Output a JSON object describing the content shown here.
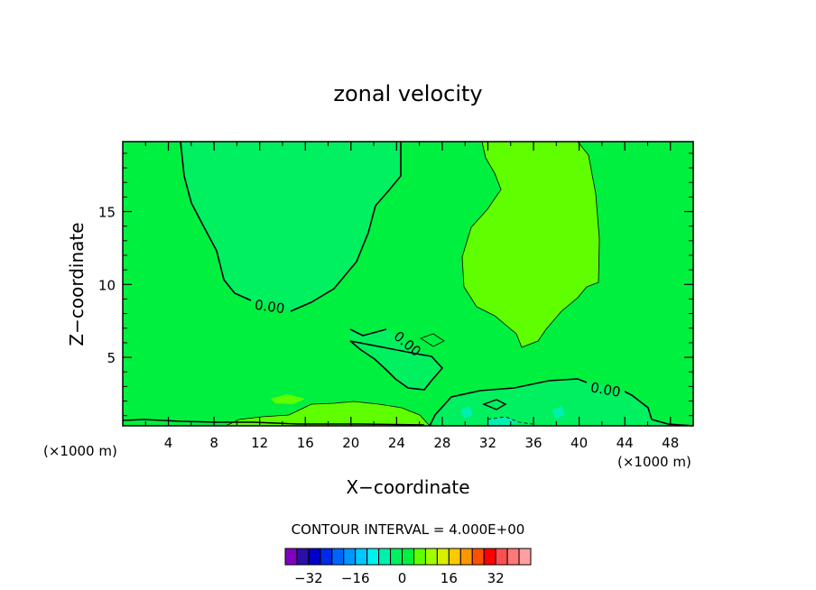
{
  "chart_data": {
    "type": "contour",
    "title": "zonal velocity",
    "xlabel": "X−coordinate",
    "ylabel": "Z−coordinate",
    "x_unit_left": "(×1000 m)",
    "x_unit_right": "(×1000 m)",
    "xlim": [
      0,
      50
    ],
    "ylim": [
      0.3,
      19.8
    ],
    "x_ticks": [
      4,
      8,
      12,
      16,
      20,
      24,
      28,
      32,
      36,
      40,
      44,
      48
    ],
    "y_ticks": [
      5,
      10,
      15
    ],
    "contour_labels": [
      {
        "text": "0.00",
        "x": 13,
        "y": 8.3
      },
      {
        "text": "0.00",
        "x": 24.5,
        "y": 5.6
      },
      {
        "text": "0.00",
        "x": 42,
        "y": 2.3
      }
    ],
    "contour_interval_text": "CONTOUR INTERVAL = 4.000E+00",
    "colorbar": {
      "colors": [
        "#8000c0",
        "#2a10a8",
        "#0000c8",
        "#0028e8",
        "#0064ff",
        "#0096ff",
        "#00c8ff",
        "#00f0f0",
        "#00f0b0",
        "#00f060",
        "#00f040",
        "#60ff00",
        "#a0ff00",
        "#d8f000",
        "#ffc800",
        "#ff9600",
        "#ff5000",
        "#ff0000",
        "#ff5050",
        "#ff7878",
        "#ffa0a0"
      ],
      "labels": [
        {
          "text": "−32",
          "value": -32
        },
        {
          "text": "−16",
          "value": -16
        },
        {
          "text": "0",
          "value": 0
        },
        {
          "text": "16",
          "value": 16
        },
        {
          "text": "32",
          "value": 32
        }
      ]
    }
  }
}
